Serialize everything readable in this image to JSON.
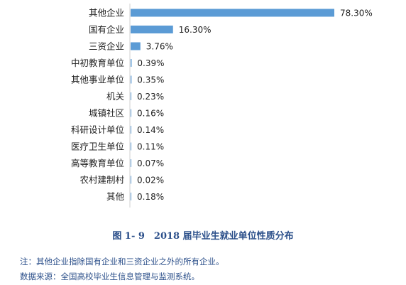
{
  "chart_data": {
    "type": "bar",
    "orientation": "horizontal",
    "categories": [
      "其他企业",
      "国有企业",
      "三资企业",
      "中初教育单位",
      "其他事业单位",
      "机关",
      "城镇社区",
      "科研设计单位",
      "医疗卫生单位",
      "高等教育单位",
      "农村建制村",
      "其他"
    ],
    "values": [
      78.3,
      16.3,
      3.76,
      0.39,
      0.35,
      0.23,
      0.16,
      0.14,
      0.11,
      0.07,
      0.02,
      0.18
    ],
    "value_labels": [
      "78.30%",
      "16.30%",
      "3.76%",
      "0.39%",
      "0.35%",
      "0.23%",
      "0.16%",
      "0.14%",
      "0.11%",
      "0.07%",
      "0.02%",
      "0.18%"
    ],
    "title": "图 1- 9　2018 届毕业生就业单位性质分布",
    "xlabel": "",
    "ylabel": "",
    "xlim": [
      0,
      78.3
    ],
    "grid": false,
    "bar_color": "#5b9bd5"
  },
  "notes": {
    "note1": "注：其他企业指除国有企业和三资企业之外的所有企业。",
    "note2": "数据来源：全国高校毕业生信息管理与监测系统。"
  }
}
